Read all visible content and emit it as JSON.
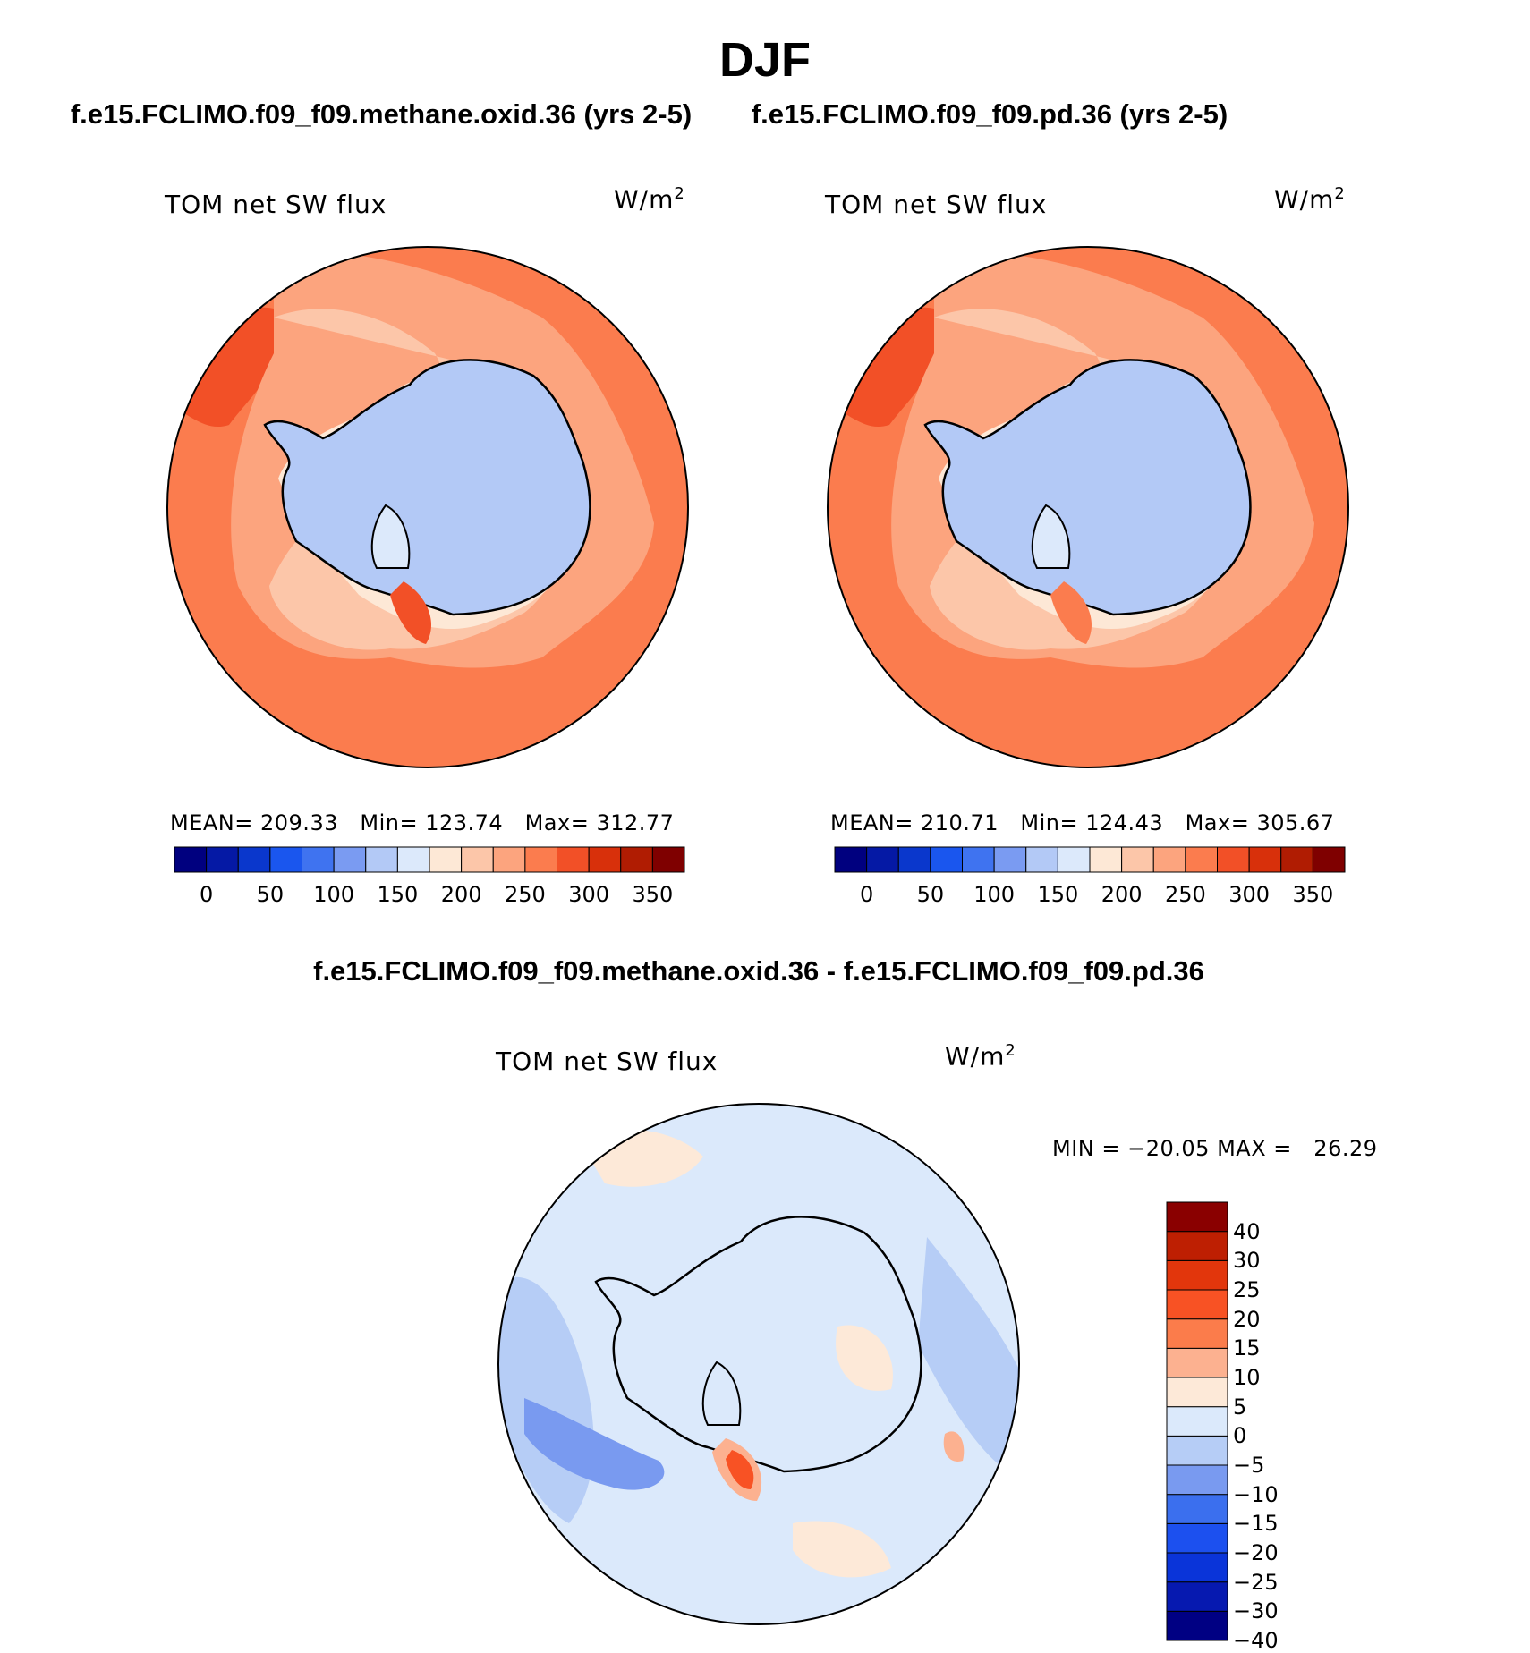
{
  "title": "DJF",
  "panels": [
    {
      "case": "f.e15.FCLIMO.f09_f09.methane.oxid.36 (yrs 2-5)",
      "variable": "TOM net SW flux",
      "units_base": "W/m",
      "units_exp": "2",
      "stats": {
        "mean_label": "MEAN=",
        "mean": "209.33",
        "min_label": "Min=",
        "min": "123.74",
        "max_label": "Max=",
        "max": "312.77"
      }
    },
    {
      "case": "f.e15.FCLIMO.f09_f09.pd.36 (yrs 2-5)",
      "variable": "TOM net SW flux",
      "units_base": "W/m",
      "units_exp": "2",
      "stats": {
        "mean_label": "MEAN=",
        "mean": "210.71",
        "min_label": "Min=",
        "min": "124.43",
        "max_label": "Max=",
        "max": "305.67"
      }
    },
    {
      "case": "f.e15.FCLIMO.f09_f09.methane.oxid.36 - f.e15.FCLIMO.f09_f09.pd.36",
      "variable": "TOM net SW flux",
      "units_base": "W/m",
      "units_exp": "2",
      "stats": {
        "min_label": "MIN =",
        "min": "−20.05",
        "max_label": "MAX =",
        "max": "26.29"
      }
    }
  ],
  "colorbar_abs": {
    "colors": [
      "#00007f",
      "#0519a5",
      "#0a37cc",
      "#1a56ee",
      "#3f73f0",
      "#7a9bf2",
      "#b3c9f6",
      "#dce9fb",
      "#fde8d6",
      "#fcc6a9",
      "#fca47e",
      "#fb7c4e",
      "#f25027",
      "#d8300b",
      "#b01c02",
      "#7f0000"
    ],
    "ticks": [
      "0",
      "50",
      "100",
      "150",
      "200",
      "250",
      "300",
      "350"
    ]
  },
  "colorbar_diff": {
    "colors": [
      "#000083",
      "#0619b0",
      "#0a34d9",
      "#1c50ef",
      "#3b6fee",
      "#799af0",
      "#b6cdf6",
      "#dbe9fb",
      "#fde9d8",
      "#fcb190",
      "#fb7c4b",
      "#f85224",
      "#e2360c",
      "#be1f02",
      "#8a0000"
    ],
    "ticks": [
      "40",
      "30",
      "25",
      "20",
      "15",
      "10",
      "5",
      "0",
      "−5",
      "−10",
      "−15",
      "−20",
      "−25",
      "−30",
      "−40"
    ]
  }
}
